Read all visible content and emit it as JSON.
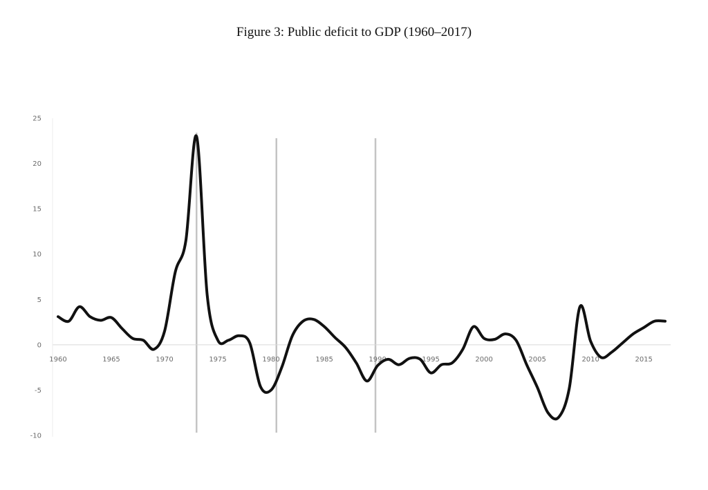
{
  "title": "Figure 3: Public deficit to GDP (1960–2017)",
  "chart_data": {
    "type": "line",
    "title": "Figure 3: Public deficit to GDP (1960–2017)",
    "xlabel": "",
    "ylabel": "",
    "xlim": [
      1960,
      2017
    ],
    "ylim": [
      -10,
      25
    ],
    "grid": false,
    "legend": "none",
    "line_color": "#111111",
    "marker_line_color": "#c4c4c4",
    "axis_color": "#d9d9d9",
    "x_ticks": [
      1960,
      1965,
      1970,
      1975,
      1980,
      1985,
      1990,
      1995,
      2000,
      2005,
      2010,
      2015
    ],
    "x_tick_labels": [
      "1960",
      "1965",
      "1970",
      "1975",
      "1980",
      "1985",
      "1990",
      "1995",
      "2000",
      "2005",
      "2010",
      "2015"
    ],
    "y_ticks": [
      -10,
      -5,
      0,
      5,
      10,
      15,
      20,
      25
    ],
    "y_tick_labels": [
      "-10",
      "-5",
      "0",
      "5",
      "10",
      "15",
      "20",
      "25"
    ],
    "vertical_lines": [
      1973,
      1980.5,
      1989.8
    ],
    "series": [
      {
        "x": [
          1960,
          1961,
          1962,
          1963,
          1964,
          1965,
          1966,
          1967,
          1968,
          1969,
          1970,
          1971,
          1972,
          1973,
          1974,
          1975,
          1976,
          1977,
          1978,
          1979,
          1980,
          1981,
          1982,
          1983,
          1984,
          1985,
          1986,
          1987,
          1988,
          1989,
          1990,
          1991,
          1992,
          1993,
          1994,
          1995,
          1996,
          1997,
          1998,
          1999,
          2000,
          2001,
          2002,
          2003,
          2004,
          2005,
          2006,
          2007,
          2008,
          2009,
          2010,
          2011,
          2012,
          2013,
          2014,
          2015,
          2016,
          2017
        ],
        "values": [
          3.1,
          2.6,
          4.2,
          3.1,
          2.7,
          3.0,
          1.8,
          0.7,
          0.5,
          -0.5,
          1.5,
          8.0,
          11.5,
          23.0,
          5.5,
          0.5,
          0.5,
          1.0,
          0.2,
          -4.6,
          -5.0,
          -2.5,
          1.0,
          2.6,
          2.8,
          2.0,
          0.8,
          -0.3,
          -2.0,
          -4.0,
          -2.3,
          -1.6,
          -2.2,
          -1.5,
          -1.6,
          -3.1,
          -2.2,
          -2.0,
          -0.5,
          2.0,
          0.7,
          0.6,
          1.2,
          0.5,
          -2.2,
          -4.7,
          -7.5,
          -8.0,
          -4.8,
          4.2,
          0.4,
          -1.4,
          -0.8,
          0.2,
          1.2,
          1.9,
          2.6,
          2.6
        ]
      }
    ]
  }
}
